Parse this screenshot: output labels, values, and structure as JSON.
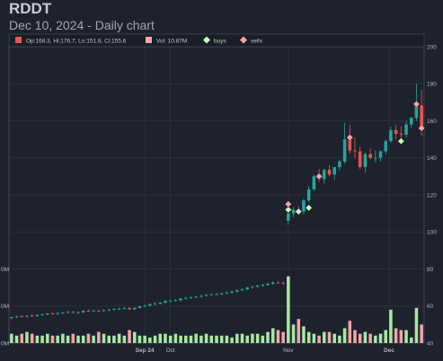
{
  "header": {
    "title": "RDDT",
    "subtitle": "Dec 10, 2024 - Daily chart"
  },
  "legend": {
    "ohlc_text": "Op:168.3, Hi:176.7, Lo:151.8, Cl:155.6",
    "volume_text": "Vol: 10.87M",
    "buys_label": "buys",
    "sells_label": "sells"
  },
  "colors": {
    "up": "#26a69a",
    "down": "#ef5350",
    "vol_up": "#a5e8a0",
    "vol_down": "#f2a4a8",
    "buy_marker": "#c8f5c0",
    "sell_marker": "#f4a5a8",
    "background": "#1e222d",
    "grid": "#2e3340"
  },
  "chart_data": {
    "type": "candlestick",
    "title": "RDDT",
    "subtitle": "Dec 10, 2024 - Daily chart",
    "x_tick_labels": [
      "Sep 24",
      "Oct",
      "Nov",
      "Dec"
    ],
    "x_tick_dates": [
      "2024-09-24",
      "2024-10-01",
      "2024-11-01",
      "2024-12-01"
    ],
    "y_ticks": [
      40,
      60,
      80,
      100,
      120,
      140,
      160,
      180,
      200
    ],
    "y_range": [
      40,
      200
    ],
    "left_axis_tick_labels": [
      "0M",
      "0M",
      "0M"
    ],
    "left_axis_tick_values": [
      80,
      60,
      40
    ],
    "grid": true,
    "last_candle": {
      "open": 168.3,
      "high": 176.7,
      "low": 151.8,
      "close": 155.6,
      "volume": "10.87M"
    },
    "dates": [
      "2024-08-16",
      "2024-08-19",
      "2024-08-20",
      "2024-08-21",
      "2024-08-22",
      "2024-08-23",
      "2024-08-26",
      "2024-08-27",
      "2024-08-28",
      "2024-08-29",
      "2024-08-30",
      "2024-09-03",
      "2024-09-04",
      "2024-09-05",
      "2024-09-06",
      "2024-09-09",
      "2024-09-10",
      "2024-09-11",
      "2024-09-12",
      "2024-09-13",
      "2024-09-16",
      "2024-09-17",
      "2024-09-18",
      "2024-09-19",
      "2024-09-20",
      "2024-09-23",
      "2024-09-24",
      "2024-09-25",
      "2024-09-26",
      "2024-09-27",
      "2024-09-30",
      "2024-10-01",
      "2024-10-02",
      "2024-10-03",
      "2024-10-04",
      "2024-10-07",
      "2024-10-08",
      "2024-10-09",
      "2024-10-10",
      "2024-10-11",
      "2024-10-14",
      "2024-10-15",
      "2024-10-16",
      "2024-10-17",
      "2024-10-18",
      "2024-10-21",
      "2024-10-22",
      "2024-10-23",
      "2024-10-24",
      "2024-10-25",
      "2024-10-28",
      "2024-10-29",
      "2024-10-30",
      "2024-10-31",
      "2024-11-01",
      "2024-11-04",
      "2024-11-05",
      "2024-11-06",
      "2024-11-07",
      "2024-11-08",
      "2024-11-11",
      "2024-11-12",
      "2024-11-13",
      "2024-11-14",
      "2024-11-15",
      "2024-11-18",
      "2024-11-19",
      "2024-11-20",
      "2024-11-21",
      "2024-11-22",
      "2024-11-25",
      "2024-11-26",
      "2024-11-27",
      "2024-11-29",
      "2024-12-02",
      "2024-12-03",
      "2024-12-04",
      "2024-12-05",
      "2024-12-06",
      "2024-12-09",
      "2024-12-10"
    ],
    "series": [
      {
        "name": "Open",
        "values": [
          53.5,
          54,
          54.4,
          54.3,
          54.8,
          54.6,
          55.2,
          55.4,
          56,
          55.7,
          56.2,
          56.5,
          56.8,
          56.4,
          56.6,
          57.4,
          57.3,
          57.5,
          57.3,
          57.7,
          58,
          58.4,
          58.6,
          58.9,
          58.2,
          59,
          59.8,
          60.2,
          61,
          61.2,
          61.8,
          62.7,
          62.8,
          63.1,
          64,
          64.4,
          64.6,
          65,
          65.5,
          66,
          66.3,
          66.4,
          66.8,
          67.2,
          67.8,
          68.5,
          69,
          70,
          70.4,
          71,
          71.4,
          72,
          72.7,
          72.5,
          106,
          110,
          112,
          111,
          117,
          123,
          130,
          128.5,
          133.5,
          131,
          135,
          138,
          150,
          144,
          143.5,
          135,
          142,
          140,
          140,
          143.5,
          149,
          155,
          153,
          152.5,
          158,
          161.6,
          168.3
        ]
      },
      {
        "name": "High",
        "values": [
          54.3,
          54.8,
          55,
          55,
          55.5,
          55.4,
          56,
          56.3,
          56.6,
          56.5,
          56.9,
          57.3,
          57.4,
          57.2,
          57.8,
          58.1,
          58.1,
          58,
          58.2,
          58.6,
          58.9,
          59.2,
          59.5,
          59.5,
          59.4,
          60.2,
          60.8,
          61.4,
          62,
          62.2,
          63.2,
          63.6,
          63.8,
          64.4,
          64.9,
          65.2,
          65.6,
          66,
          66.4,
          66.8,
          67.2,
          67.4,
          67.9,
          68.4,
          69,
          69.6,
          70.4,
          71,
          71.4,
          72,
          72.6,
          73.3,
          73.6,
          73.2,
          112,
          113.5,
          114,
          118,
          125,
          131,
          134,
          134,
          136,
          135,
          139,
          159,
          158,
          151,
          146,
          143,
          145,
          144,
          144,
          150,
          157,
          158,
          157,
          160,
          162,
          180,
          176.7
        ]
      },
      {
        "name": "Low",
        "values": [
          52.6,
          53.4,
          53.8,
          53.7,
          54,
          54.1,
          54.6,
          55,
          55.2,
          55.2,
          55.6,
          55.9,
          56,
          55.8,
          56.1,
          56.8,
          56.8,
          56.9,
          57,
          57.2,
          57.5,
          57.8,
          58.1,
          57.8,
          57.8,
          58.6,
          59.3,
          59.7,
          60.4,
          60.8,
          61.3,
          62.1,
          62.3,
          62.6,
          63.5,
          63.8,
          64.1,
          64.5,
          65,
          65.5,
          65.8,
          66,
          66.3,
          66.7,
          67.3,
          68,
          68.5,
          69.4,
          70,
          70.4,
          70.9,
          71.5,
          72,
          71.5,
          104,
          108,
          110,
          109.5,
          116,
          122,
          127,
          126,
          130,
          128,
          133,
          137,
          142,
          140,
          134,
          132,
          139,
          137.5,
          138,
          142,
          148,
          150,
          149.5,
          151,
          156,
          160,
          151.8
        ]
      },
      {
        "name": "Close",
        "values": [
          54,
          54.4,
          54.3,
          54.8,
          54.6,
          55.2,
          55.4,
          56,
          55.7,
          56.2,
          56.5,
          56.8,
          56.4,
          56.6,
          57.4,
          57.3,
          57.5,
          57.3,
          57.7,
          58,
          58.4,
          58.6,
          58.9,
          58.2,
          59,
          59.8,
          60.2,
          61,
          61.2,
          61.8,
          62.7,
          62.8,
          63.1,
          64,
          64.4,
          64.6,
          65,
          65.5,
          66,
          66.3,
          66.4,
          66.8,
          67.2,
          67.8,
          68.5,
          69,
          70,
          70.4,
          71,
          71.4,
          72,
          72.7,
          72.5,
          72.2,
          110,
          112,
          111,
          117,
          123,
          130,
          128.5,
          133.5,
          131,
          135,
          138,
          150,
          144,
          143.5,
          135,
          142,
          140,
          140,
          143.5,
          149,
          155,
          153,
          152.5,
          158,
          161.6,
          168.3,
          155.6
        ]
      },
      {
        "name": "Volume",
        "values": [
          45,
          44,
          45,
          46,
          45,
          44,
          44,
          45,
          44,
          44,
          45,
          44,
          45,
          44,
          44,
          45,
          44,
          46,
          45,
          44,
          44,
          45,
          44,
          47,
          46,
          44,
          44,
          43,
          44,
          45,
          45,
          44,
          45,
          44,
          44,
          44,
          45,
          44,
          45,
          44,
          44,
          44,
          44,
          43,
          45,
          45,
          44,
          45,
          45,
          44,
          46,
          48,
          47,
          46,
          76,
          50,
          53,
          49,
          46,
          45,
          44,
          46,
          46,
          45,
          44,
          48,
          52,
          47,
          45,
          46,
          45,
          44,
          45,
          47,
          58,
          48,
          47,
          47,
          43,
          59,
          50
        ]
      }
    ],
    "buys": [
      {
        "date": "2024-11-01",
        "price": 112
      },
      {
        "date": "2024-11-05",
        "price": 111
      },
      {
        "date": "2024-11-07",
        "price": 113
      },
      {
        "date": "2024-12-04",
        "price": 149
      }
    ],
    "sells": [
      {
        "date": "2024-11-01",
        "price": 115
      },
      {
        "date": "2024-11-11",
        "price": 130
      },
      {
        "date": "2024-11-19",
        "price": 151
      },
      {
        "date": "2024-12-09",
        "price": 169
      },
      {
        "date": "2024-12-10",
        "price": 156
      }
    ]
  }
}
